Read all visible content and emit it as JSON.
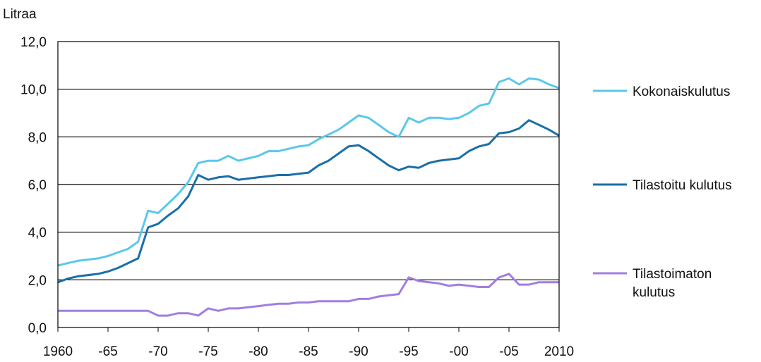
{
  "chart_data": {
    "type": "line",
    "ylabel": "Litraa",
    "ylim": [
      0,
      12
    ],
    "xlim": [
      1960,
      2010
    ],
    "yticks": [
      0,
      2,
      4,
      6,
      8,
      10,
      12
    ],
    "ytick_labels": [
      "0,0",
      "2,0",
      "4,0",
      "6,0",
      "8,0",
      "10,0",
      "12,0"
    ],
    "xticks": [
      1960,
      1965,
      1970,
      1975,
      1980,
      1985,
      1990,
      1995,
      2000,
      2005,
      2010
    ],
    "xtick_labels": [
      "1960",
      "-65",
      "-70",
      "-75",
      "-80",
      "-85",
      "-90",
      "-95",
      "-00",
      "-05",
      "2010"
    ],
    "grid": true,
    "legend_position": "right",
    "x": [
      1960,
      1961,
      1962,
      1963,
      1964,
      1965,
      1966,
      1967,
      1968,
      1969,
      1970,
      1971,
      1972,
      1973,
      1974,
      1975,
      1976,
      1977,
      1978,
      1979,
      1980,
      1981,
      1982,
      1983,
      1984,
      1985,
      1986,
      1987,
      1988,
      1989,
      1990,
      1991,
      1992,
      1993,
      1994,
      1995,
      1996,
      1997,
      1998,
      1999,
      2000,
      2001,
      2002,
      2003,
      2004,
      2005,
      2006,
      2007,
      2008,
      2009,
      2010
    ],
    "series": [
      {
        "name": "Kokonaiskulutus",
        "color": "#5bc8ea",
        "values": [
          2.6,
          2.7,
          2.8,
          2.85,
          2.9,
          3.0,
          3.15,
          3.3,
          3.6,
          4.9,
          4.8,
          5.2,
          5.6,
          6.1,
          6.9,
          7.0,
          7.0,
          7.2,
          7.0,
          7.1,
          7.2,
          7.4,
          7.4,
          7.5,
          7.6,
          7.65,
          7.9,
          8.1,
          8.3,
          8.6,
          8.9,
          8.8,
          8.5,
          8.2,
          8.0,
          8.8,
          8.6,
          8.8,
          8.8,
          8.75,
          8.8,
          9.0,
          9.3,
          9.4,
          10.3,
          10.45,
          10.2,
          10.45,
          10.4,
          10.2,
          10.05
        ]
      },
      {
        "name": "Tilastoitu kulutus",
        "color": "#1a6fa8",
        "values": [
          1.9,
          2.05,
          2.15,
          2.2,
          2.25,
          2.35,
          2.5,
          2.7,
          2.9,
          4.2,
          4.35,
          4.7,
          5.0,
          5.5,
          6.4,
          6.2,
          6.3,
          6.35,
          6.2,
          6.25,
          6.3,
          6.35,
          6.4,
          6.4,
          6.45,
          6.5,
          6.8,
          7.0,
          7.3,
          7.6,
          7.65,
          7.4,
          7.1,
          6.8,
          6.6,
          6.75,
          6.7,
          6.9,
          7.0,
          7.05,
          7.1,
          7.4,
          7.6,
          7.7,
          8.15,
          8.2,
          8.35,
          8.7,
          8.5,
          8.3,
          8.05
        ]
      },
      {
        "name": "Tilastoimaton kulutus",
        "label_lines": [
          "Tilastoimaton",
          "kulutus"
        ],
        "color": "#a27ee0",
        "values": [
          0.7,
          0.7,
          0.7,
          0.7,
          0.7,
          0.7,
          0.7,
          0.7,
          0.7,
          0.7,
          0.5,
          0.5,
          0.6,
          0.6,
          0.5,
          0.8,
          0.7,
          0.8,
          0.8,
          0.85,
          0.9,
          0.95,
          1.0,
          1.0,
          1.05,
          1.05,
          1.1,
          1.1,
          1.1,
          1.1,
          1.2,
          1.2,
          1.3,
          1.35,
          1.4,
          2.1,
          1.95,
          1.9,
          1.85,
          1.75,
          1.8,
          1.75,
          1.7,
          1.7,
          2.1,
          2.25,
          1.8,
          1.8,
          1.9,
          1.9,
          1.9
        ]
      }
    ]
  }
}
